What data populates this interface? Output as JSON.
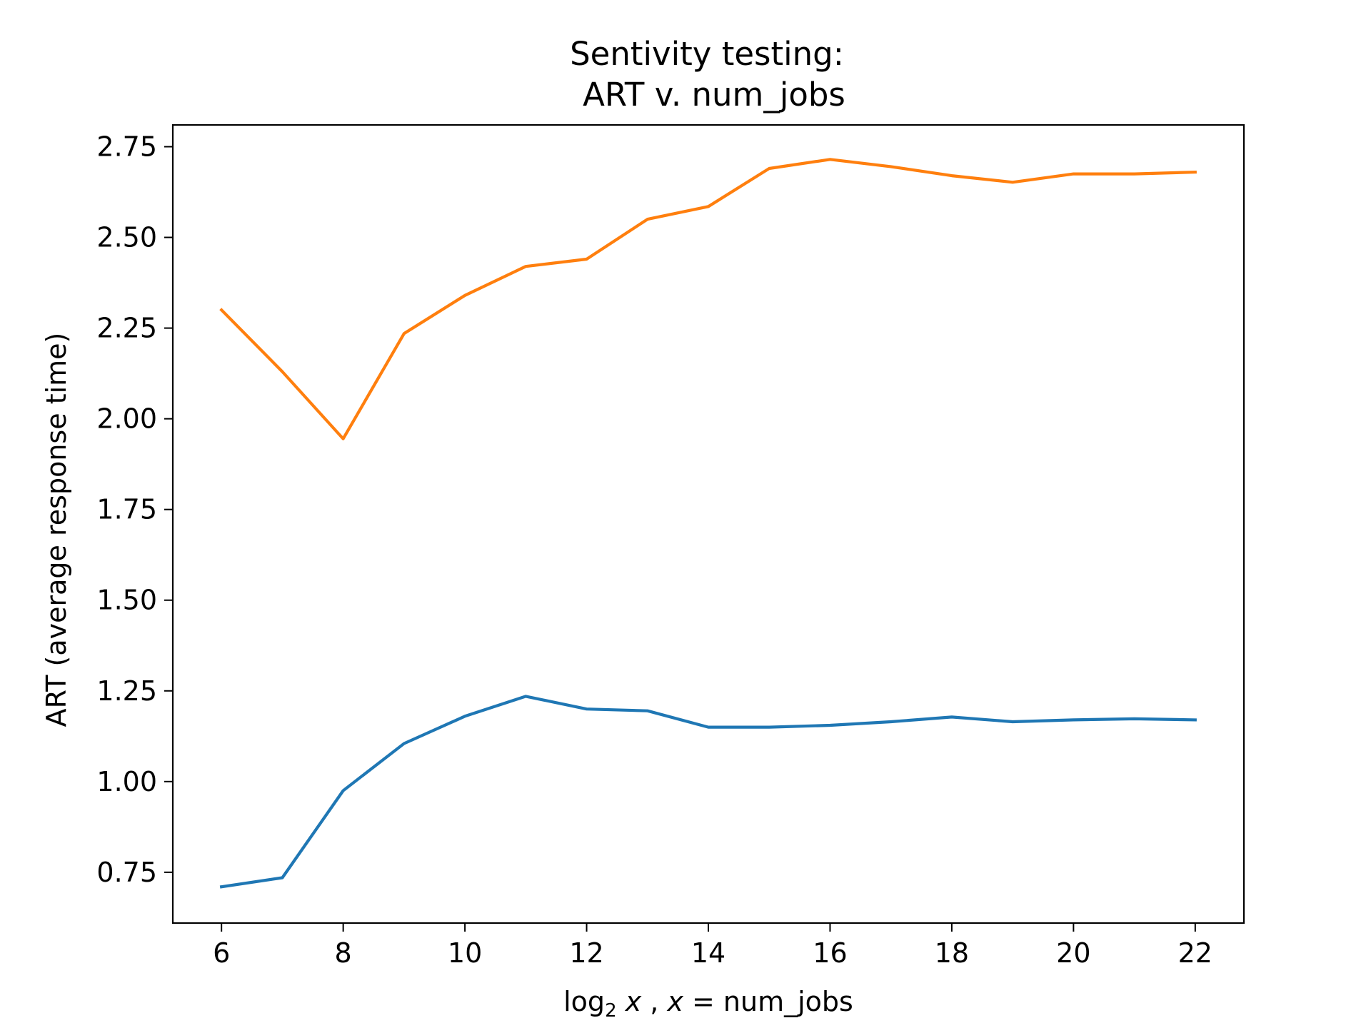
{
  "chart_data": {
    "type": "line",
    "title_lines": [
      "Sentivity testing:",
      "ART v. num_jobs"
    ],
    "xlabel_parts": [
      "log",
      "2",
      " x",
      " , ",
      "x",
      " = num_jobs"
    ],
    "ylabel": "ART (average response time)",
    "xlim": [
      5.2,
      22.8
    ],
    "ylim": [
      0.61,
      2.81
    ],
    "xticks": [
      6,
      8,
      10,
      12,
      14,
      16,
      18,
      20,
      22
    ],
    "xtick_labels": [
      "6",
      "8",
      "10",
      "12",
      "14",
      "16",
      "18",
      "20",
      "22"
    ],
    "yticks": [
      0.75,
      1.0,
      1.25,
      1.5,
      1.75,
      2.0,
      2.25,
      2.5,
      2.75
    ],
    "ytick_labels": [
      "0.75",
      "1.00",
      "1.25",
      "1.50",
      "1.75",
      "2.00",
      "2.25",
      "2.50",
      "2.75"
    ],
    "grid": false,
    "x": [
      6,
      7,
      8,
      9,
      10,
      11,
      12,
      13,
      14,
      15,
      16,
      17,
      18,
      19,
      20,
      21,
      22
    ],
    "series": [
      {
        "color": "#1f77b4",
        "values": [
          0.71,
          0.735,
          0.975,
          1.105,
          1.18,
          1.235,
          1.2,
          1.195,
          1.15,
          1.15,
          1.155,
          1.165,
          1.178,
          1.165,
          1.17,
          1.173,
          1.17
        ]
      },
      {
        "color": "#ff7f0e",
        "values": [
          2.3,
          2.13,
          1.945,
          2.235,
          2.34,
          2.42,
          2.44,
          2.55,
          2.585,
          2.69,
          2.715,
          2.695,
          2.67,
          2.652,
          2.675,
          2.675,
          2.68
        ]
      }
    ]
  }
}
